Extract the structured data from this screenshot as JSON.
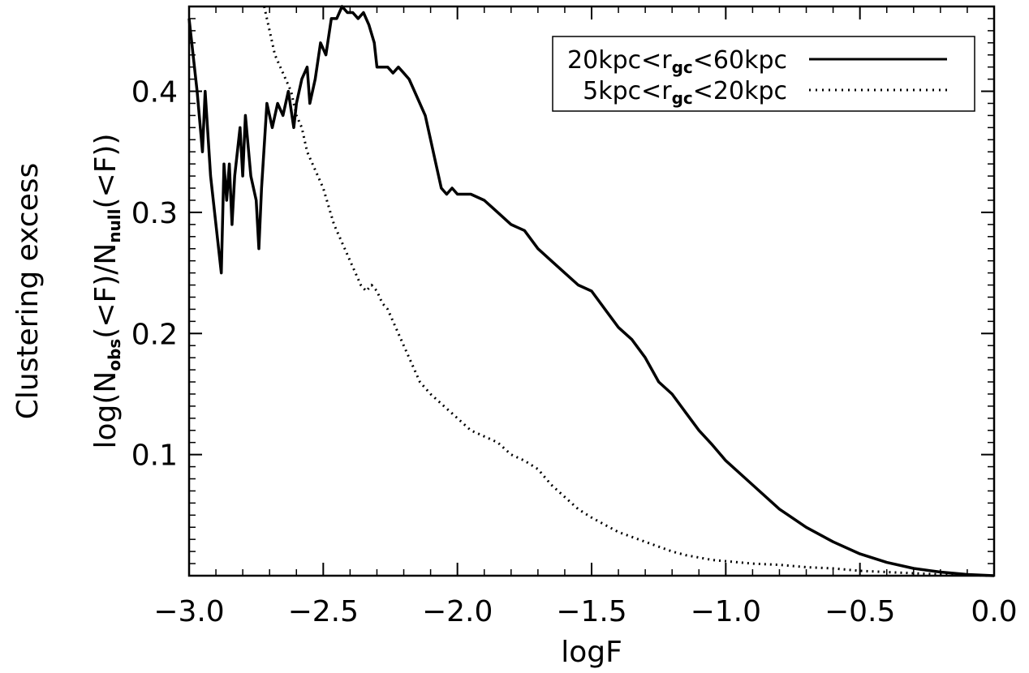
{
  "chart_data": {
    "type": "line",
    "xlabel": "logF",
    "ylabel_outer": "Clustering excess",
    "ylabel_inner": {
      "p1": "log(N",
      "s1": "obs",
      "p2": "(<F)/N",
      "s2": "null",
      "p3": "(<F))"
    },
    "xlim": [
      -3.0,
      0.0
    ],
    "ylim": [
      0.0,
      0.47
    ],
    "x_ticks": [
      -3.0,
      -2.5,
      -2.0,
      -1.5,
      -1.0,
      -0.5,
      0.0
    ],
    "x_tick_labels": [
      "−3.0",
      "−2.5",
      "−2.0",
      "−1.5",
      "−1.0",
      "−0.5",
      "0.0"
    ],
    "y_ticks": [
      0.1,
      0.2,
      0.3,
      0.4
    ],
    "y_tick_labels": [
      "0.1",
      "0.2",
      "0.3",
      "0.4"
    ],
    "legend_position": "top-right",
    "series": [
      {
        "name": "20kpc<r_gc<60kpc",
        "legend": {
          "pre": "20kpc<r",
          "sub": "gc",
          "post": "<60kpc"
        },
        "style": "solid",
        "color": "#000000",
        "points": [
          [
            -3.0,
            0.46
          ],
          [
            -2.97,
            0.4
          ],
          [
            -2.95,
            0.35
          ],
          [
            -2.94,
            0.4
          ],
          [
            -2.92,
            0.33
          ],
          [
            -2.9,
            0.29
          ],
          [
            -2.88,
            0.25
          ],
          [
            -2.87,
            0.34
          ],
          [
            -2.86,
            0.31
          ],
          [
            -2.85,
            0.34
          ],
          [
            -2.84,
            0.29
          ],
          [
            -2.83,
            0.33
          ],
          [
            -2.81,
            0.37
          ],
          [
            -2.8,
            0.33
          ],
          [
            -2.79,
            0.38
          ],
          [
            -2.77,
            0.33
          ],
          [
            -2.75,
            0.31
          ],
          [
            -2.74,
            0.27
          ],
          [
            -2.73,
            0.32
          ],
          [
            -2.71,
            0.39
          ],
          [
            -2.69,
            0.37
          ],
          [
            -2.67,
            0.39
          ],
          [
            -2.65,
            0.38
          ],
          [
            -2.63,
            0.4
          ],
          [
            -2.61,
            0.37
          ],
          [
            -2.6,
            0.39
          ],
          [
            -2.58,
            0.41
          ],
          [
            -2.56,
            0.42
          ],
          [
            -2.55,
            0.39
          ],
          [
            -2.53,
            0.41
          ],
          [
            -2.51,
            0.44
          ],
          [
            -2.49,
            0.43
          ],
          [
            -2.47,
            0.46
          ],
          [
            -2.45,
            0.46
          ],
          [
            -2.43,
            0.47
          ],
          [
            -2.41,
            0.465
          ],
          [
            -2.39,
            0.465
          ],
          [
            -2.37,
            0.46
          ],
          [
            -2.35,
            0.465
          ],
          [
            -2.33,
            0.455
          ],
          [
            -2.31,
            0.44
          ],
          [
            -2.3,
            0.42
          ],
          [
            -2.28,
            0.42
          ],
          [
            -2.26,
            0.42
          ],
          [
            -2.24,
            0.415
          ],
          [
            -2.22,
            0.42
          ],
          [
            -2.2,
            0.415
          ],
          [
            -2.18,
            0.41
          ],
          [
            -2.16,
            0.4
          ],
          [
            -2.14,
            0.39
          ],
          [
            -2.12,
            0.38
          ],
          [
            -2.1,
            0.36
          ],
          [
            -2.08,
            0.34
          ],
          [
            -2.06,
            0.32
          ],
          [
            -2.04,
            0.315
          ],
          [
            -2.02,
            0.32
          ],
          [
            -2.0,
            0.315
          ],
          [
            -1.95,
            0.315
          ],
          [
            -1.9,
            0.31
          ],
          [
            -1.85,
            0.3
          ],
          [
            -1.8,
            0.29
          ],
          [
            -1.75,
            0.285
          ],
          [
            -1.7,
            0.27
          ],
          [
            -1.65,
            0.26
          ],
          [
            -1.6,
            0.25
          ],
          [
            -1.55,
            0.24
          ],
          [
            -1.5,
            0.235
          ],
          [
            -1.45,
            0.22
          ],
          [
            -1.4,
            0.205
          ],
          [
            -1.35,
            0.195
          ],
          [
            -1.3,
            0.18
          ],
          [
            -1.25,
            0.16
          ],
          [
            -1.2,
            0.15
          ],
          [
            -1.15,
            0.135
          ],
          [
            -1.1,
            0.12
          ],
          [
            -1.05,
            0.108
          ],
          [
            -1.0,
            0.095
          ],
          [
            -0.9,
            0.075
          ],
          [
            -0.8,
            0.055
          ],
          [
            -0.7,
            0.04
          ],
          [
            -0.6,
            0.028
          ],
          [
            -0.5,
            0.018
          ],
          [
            -0.4,
            0.011
          ],
          [
            -0.3,
            0.006
          ],
          [
            -0.2,
            0.003
          ],
          [
            -0.1,
            0.001
          ],
          [
            0.0,
            0.0
          ]
        ]
      },
      {
        "name": "5kpc<r_gc<20kpc",
        "legend": {
          "pre": "5kpc<r",
          "sub": "gc",
          "post": "<20kpc"
        },
        "style": "dotted",
        "color": "#000000",
        "points": [
          [
            -2.72,
            0.47
          ],
          [
            -2.7,
            0.45
          ],
          [
            -2.68,
            0.43
          ],
          [
            -2.66,
            0.42
          ],
          [
            -2.64,
            0.41
          ],
          [
            -2.62,
            0.4
          ],
          [
            -2.6,
            0.38
          ],
          [
            -2.58,
            0.37
          ],
          [
            -2.56,
            0.35
          ],
          [
            -2.54,
            0.34
          ],
          [
            -2.52,
            0.33
          ],
          [
            -2.5,
            0.32
          ],
          [
            -2.48,
            0.305
          ],
          [
            -2.46,
            0.29
          ],
          [
            -2.44,
            0.28
          ],
          [
            -2.42,
            0.27
          ],
          [
            -2.4,
            0.26
          ],
          [
            -2.38,
            0.25
          ],
          [
            -2.36,
            0.24
          ],
          [
            -2.34,
            0.235
          ],
          [
            -2.32,
            0.24
          ],
          [
            -2.3,
            0.235
          ],
          [
            -2.28,
            0.225
          ],
          [
            -2.26,
            0.22
          ],
          [
            -2.24,
            0.21
          ],
          [
            -2.22,
            0.2
          ],
          [
            -2.2,
            0.19
          ],
          [
            -2.18,
            0.18
          ],
          [
            -2.16,
            0.17
          ],
          [
            -2.14,
            0.16
          ],
          [
            -2.12,
            0.155
          ],
          [
            -2.1,
            0.15
          ],
          [
            -2.05,
            0.14
          ],
          [
            -2.0,
            0.13
          ],
          [
            -1.95,
            0.12
          ],
          [
            -1.9,
            0.115
          ],
          [
            -1.85,
            0.11
          ],
          [
            -1.8,
            0.1
          ],
          [
            -1.75,
            0.095
          ],
          [
            -1.7,
            0.088
          ],
          [
            -1.65,
            0.075
          ],
          [
            -1.6,
            0.065
          ],
          [
            -1.55,
            0.055
          ],
          [
            -1.5,
            0.048
          ],
          [
            -1.45,
            0.042
          ],
          [
            -1.4,
            0.036
          ],
          [
            -1.35,
            0.032
          ],
          [
            -1.3,
            0.028
          ],
          [
            -1.25,
            0.024
          ],
          [
            -1.2,
            0.02
          ],
          [
            -1.15,
            0.017
          ],
          [
            -1.1,
            0.015
          ],
          [
            -1.05,
            0.013
          ],
          [
            -1.0,
            0.012
          ],
          [
            -0.9,
            0.01
          ],
          [
            -0.8,
            0.009
          ],
          [
            -0.7,
            0.007
          ],
          [
            -0.6,
            0.006
          ],
          [
            -0.5,
            0.004
          ],
          [
            -0.4,
            0.003
          ],
          [
            -0.3,
            0.002
          ],
          [
            -0.2,
            0.001
          ],
          [
            -0.1,
            0.0005
          ],
          [
            0.0,
            0.0
          ]
        ]
      }
    ]
  }
}
